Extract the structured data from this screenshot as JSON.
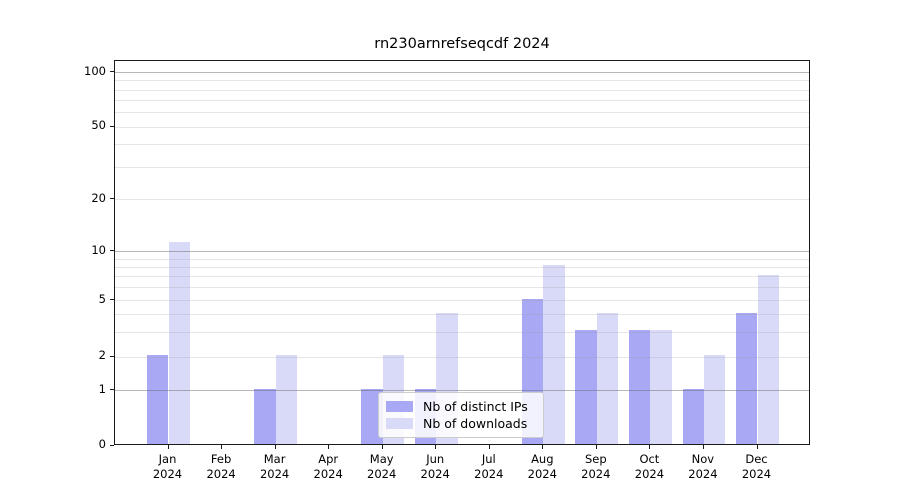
{
  "title": "rn230arnrefseqcdf 2024",
  "chart_data": {
    "type": "bar",
    "categories": [
      "Jan",
      "Feb",
      "Mar",
      "Apr",
      "May",
      "Jun",
      "Jul",
      "Aug",
      "Sep",
      "Oct",
      "Nov",
      "Dec"
    ],
    "year": "2024",
    "series": [
      {
        "name": "Nb of distinct IPs",
        "color": "#a8a8f4",
        "values": [
          2,
          0,
          1,
          0,
          1,
          1,
          0,
          5,
          3,
          3,
          1,
          4
        ]
      },
      {
        "name": "Nb of downloads",
        "color": "#d9d9f8",
        "values": [
          11,
          0,
          2,
          0,
          2,
          4,
          0,
          8,
          4,
          3,
          2,
          7
        ]
      }
    ],
    "title": "rn230arnrefseqcdf 2024",
    "xlabel": "",
    "ylabel": "",
    "y_axis": {
      "scale": "log-like with linear segment to 0",
      "tick_values": [
        0,
        1,
        2,
        5,
        10,
        20,
        50,
        100
      ],
      "major_grid_values": [
        1,
        10,
        100
      ],
      "minor_grid_values": [
        2,
        3,
        4,
        5,
        6,
        7,
        8,
        9,
        20,
        30,
        40,
        50,
        60,
        70,
        80,
        90
      ],
      "ylim_top_approx": 115
    },
    "legend": {
      "position": "lower center",
      "entries": [
        "Nb of distinct IPs",
        "Nb of downloads"
      ]
    },
    "grid": true
  },
  "colors": {
    "bar_distinct_ips": "#a8a8f4",
    "bar_downloads": "#d9d9f8",
    "axis_spine": "#1a1a1a",
    "grid_major": "#bdbdbd",
    "grid_minor": "#e9e9e9",
    "background": "#ffffff",
    "text": "#000000"
  }
}
